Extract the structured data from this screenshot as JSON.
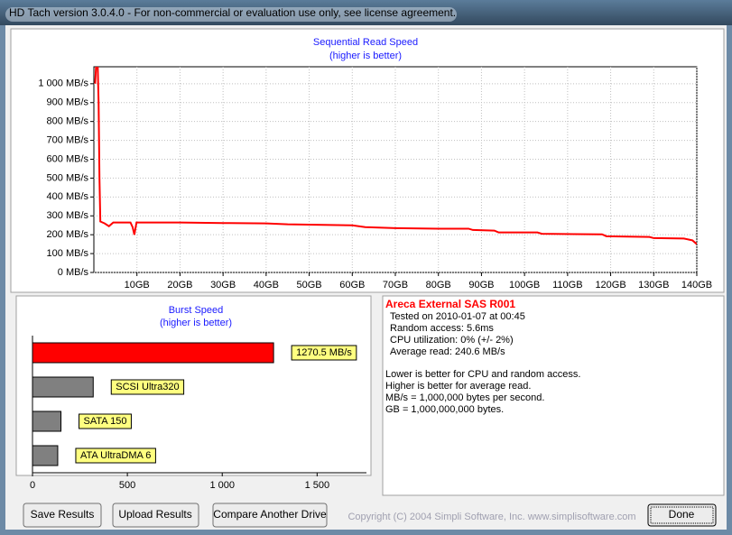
{
  "window_title": "HD Tach version 3.0.4.0  - For non-commercial or evaluation use only, see license agreement.",
  "chart_data": [
    {
      "type": "line",
      "title": "Sequential Read Speed",
      "subtitle": "(higher is better)",
      "color": "#ff0000",
      "grid": true,
      "xlim": [
        0,
        140
      ],
      "ylim": [
        0,
        1090
      ],
      "xticks": [
        {
          "value": 10,
          "label": "10GB"
        },
        {
          "value": 20,
          "label": "20GB"
        },
        {
          "value": 30,
          "label": "30GB"
        },
        {
          "value": 40,
          "label": "40GB"
        },
        {
          "value": 50,
          "label": "50GB"
        },
        {
          "value": 60,
          "label": "60GB"
        },
        {
          "value": 70,
          "label": "70GB"
        },
        {
          "value": 80,
          "label": "80GB"
        },
        {
          "value": 90,
          "label": "90GB"
        },
        {
          "value": 100,
          "label": "100GB"
        },
        {
          "value": 110,
          "label": "110GB"
        },
        {
          "value": 120,
          "label": "120GB"
        },
        {
          "value": 130,
          "label": "130GB"
        },
        {
          "value": 140,
          "label": "140GB"
        }
      ],
      "yticks": [
        {
          "value": 0,
          "label": "0 MB/s"
        },
        {
          "value": 100,
          "label": "100 MB/s"
        },
        {
          "value": 200,
          "label": "200 MB/s"
        },
        {
          "value": 300,
          "label": "300 MB/s"
        },
        {
          "value": 400,
          "label": "400 MB/s"
        },
        {
          "value": 500,
          "label": "500 MB/s"
        },
        {
          "value": 600,
          "label": "600 MB/s"
        },
        {
          "value": 700,
          "label": "700 MB/s"
        },
        {
          "value": 800,
          "label": "800 MB/s"
        },
        {
          "value": 900,
          "label": "900 MB/s"
        },
        {
          "value": 1000,
          "label": "1 000 MB/s"
        }
      ],
      "x": [
        0.3,
        0.5,
        0.9,
        1.1,
        1.3,
        1.5,
        2.5,
        3.5,
        4.5,
        8.5,
        9.0,
        9.4,
        9.9,
        20,
        30,
        40,
        45,
        60,
        63,
        70,
        80,
        87,
        88,
        93,
        94,
        103,
        104,
        118,
        119,
        129,
        130,
        137,
        139,
        140
      ],
      "values": [
        1000,
        1090,
        1090,
        900,
        500,
        270,
        260,
        245,
        265,
        265,
        240,
        200,
        265,
        265,
        262,
        260,
        255,
        250,
        240,
        235,
        232,
        232,
        225,
        222,
        212,
        212,
        205,
        202,
        192,
        188,
        182,
        180,
        170,
        150
      ]
    },
    {
      "type": "hbar",
      "title": "Burst Speed",
      "subtitle": "(higher is better)",
      "categories": [
        null,
        "SCSI Ultra320",
        "SATA 150",
        "ATA UltraDMA 6"
      ],
      "values": [
        1270.5,
        320,
        150,
        133
      ],
      "value_labels": [
        "1270.5 MB/s",
        null,
        null,
        null
      ],
      "colors": [
        "#ff0000",
        "#808080",
        "#808080",
        "#808080"
      ],
      "xlim": [
        0,
        1760
      ],
      "xticks": [
        0,
        500,
        {
          "value": 1000,
          "label": "1 000"
        },
        {
          "value": 1500,
          "label": "1 500"
        }
      ]
    }
  ],
  "info": {
    "title": "Areca External SAS R001",
    "stats": [
      "Tested on 2010-01-07 at 00:45",
      "Random access: 5.6ms",
      "CPU utilization: 0% (+/- 2%)",
      "Average read: 240.6 MB/s"
    ],
    "notes": [
      "Lower is better for CPU and random access.",
      "Higher is better for average read.",
      "MB/s = 1,000,000 bytes per second.",
      "GB = 1,000,000,000 bytes."
    ]
  },
  "buttons": [
    "Save Results",
    "Upload Results",
    "Compare Another Drive",
    "Done"
  ],
  "copyright": "Copyright (C) 2004 Simpli Software, Inc. www.simplisoftware.com"
}
